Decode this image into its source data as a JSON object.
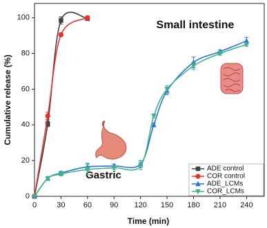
{
  "chart_data": {
    "type": "line",
    "x_label": "Time (min)",
    "y_label": "Cumulative release (%)",
    "annotations": [
      "Small intestine",
      "Gastric"
    ],
    "annotation_colors": [
      "#1e6391",
      "#e3282b"
    ],
    "xlim": [
      0,
      260
    ],
    "ylim": [
      0,
      108
    ],
    "xticks": [
      0,
      30,
      60,
      90,
      120,
      150,
      180,
      210,
      240
    ],
    "yticks": [
      0,
      20,
      40,
      60,
      80,
      100
    ],
    "legend": "lower right",
    "series": [
      {
        "name": "ADE control",
        "color": "#404040",
        "marker": "square",
        "x": [
          0,
          15,
          30,
          60
        ],
        "values": [
          0,
          40.5,
          98.5,
          99.5
        ],
        "errors": [
          0,
          1.5,
          2,
          1
        ]
      },
      {
        "name": "COR control",
        "color": "#e8312f",
        "marker": "circle",
        "x": [
          0,
          15,
          30,
          60
        ],
        "values": [
          0,
          45,
          90.5,
          100
        ],
        "errors": [
          0,
          2,
          1,
          1
        ]
      },
      {
        "name": "ADE_LCMs",
        "color": "#2f6fd6",
        "marker": "triangle-up",
        "x": [
          0,
          15,
          30,
          60,
          90,
          120,
          135,
          150,
          180,
          210,
          240
        ],
        "values": [
          0,
          10,
          13,
          16.5,
          17,
          18,
          40,
          59,
          75,
          81,
          87
        ],
        "errors": [
          0,
          1,
          1,
          2,
          1,
          2,
          1,
          2,
          3,
          1,
          2
        ]
      },
      {
        "name": "COR_LCMs",
        "color": "#3cb38a",
        "marker": "triangle-down",
        "x": [
          0,
          15,
          30,
          60,
          90,
          120,
          135,
          150,
          180,
          210,
          240
        ],
        "values": [
          0,
          10,
          12.5,
          15,
          16,
          17,
          45,
          60,
          73,
          80,
          85
        ],
        "errors": [
          0,
          1,
          1,
          3,
          1,
          2,
          1,
          2,
          2,
          1,
          1
        ]
      }
    ]
  }
}
